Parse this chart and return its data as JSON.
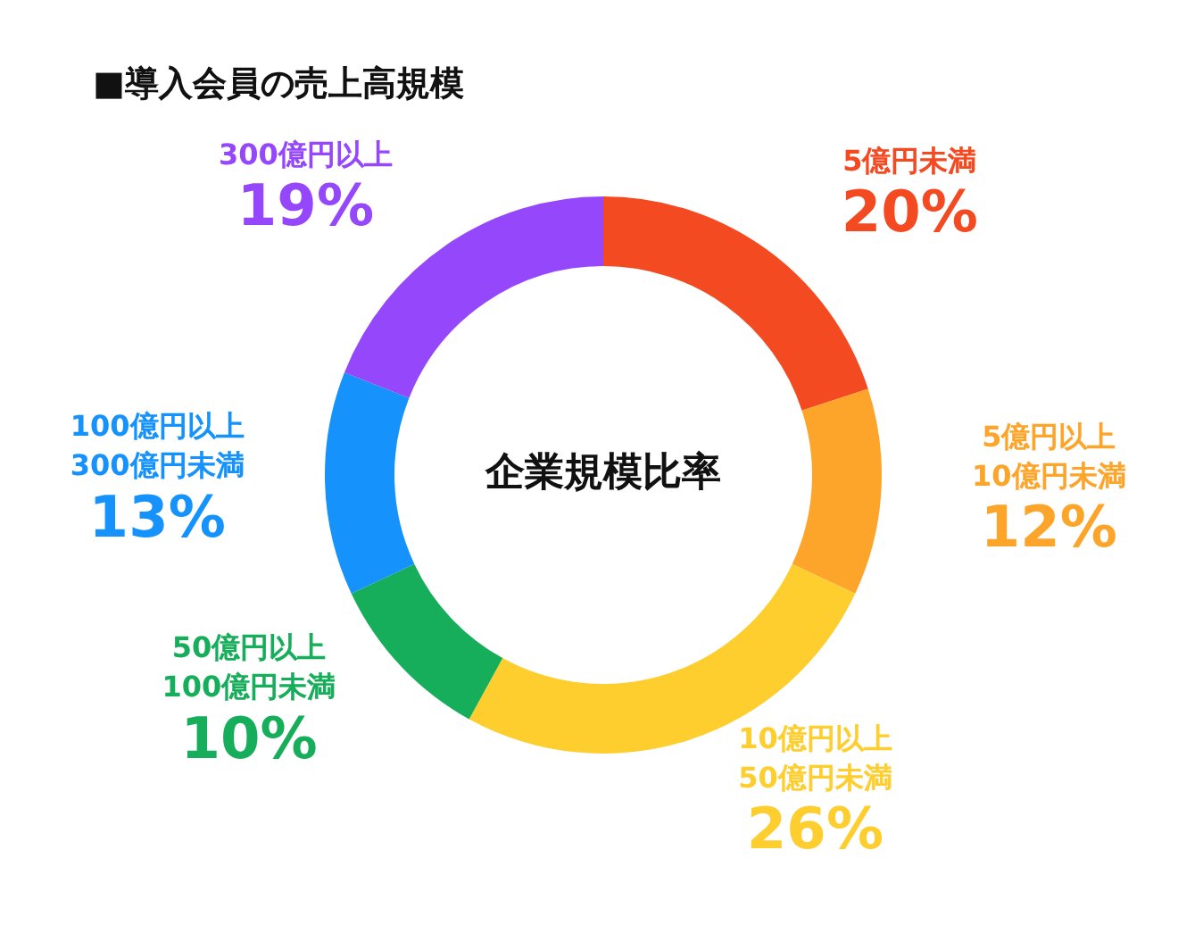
{
  "chart_data": {
    "type": "donut",
    "title": "■導入会員の売上高規模",
    "categories": [
      "5億円未満",
      "5億円以上\n10億円未満",
      "10億円以上\n50億円未満",
      "50億円以上\n100億円未満",
      "100億円以上\n300億円未満",
      "300億円以上"
    ],
    "values": [
      20,
      12,
      26,
      10,
      13,
      19
    ],
    "colors": [
      "#f44a22",
      "#fda42a",
      "#fecd2e",
      "#17ae5b",
      "#1592fb",
      "#9547fb"
    ],
    "value_labels": [
      "20%",
      "12%",
      "26%",
      "10%",
      "13%",
      "19%"
    ],
    "annotations": [
      "企業規模比率"
    ],
    "legend": false
  }
}
